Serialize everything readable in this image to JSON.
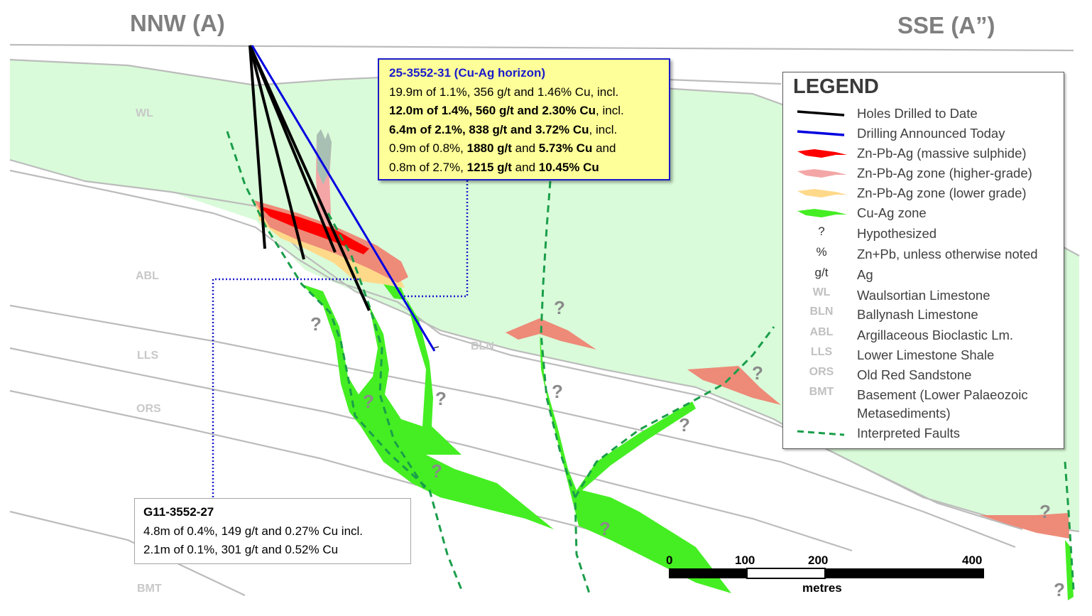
{
  "section": {
    "left_direction": "NNW (A)",
    "right_direction": "SSE (A”)",
    "units": [
      {
        "id": "wl",
        "label": "WL"
      },
      {
        "id": "abl",
        "label": "ABL"
      },
      {
        "id": "lls",
        "label": "LLS"
      },
      {
        "id": "ors",
        "label": "ORS"
      },
      {
        "id": "bmt",
        "label": "BMT"
      },
      {
        "id": "bln",
        "label": "BLN"
      }
    ],
    "question_mark": "?"
  },
  "callout_new_hole": {
    "title": "25-3552-31 (Cu-Ag horizon)",
    "lines": [
      [
        {
          "t": "19.9m of 1.1%, 356 g/t and 1.46% Cu, incl.",
          "b": false
        }
      ],
      [
        {
          "t": "12.0m of 1.4%, 560 g/t and 2.30% Cu",
          "b": true
        },
        {
          "t": ", incl.",
          "b": false
        }
      ],
      [
        {
          "t": "6.4m of 2.1%, 838 g/t and 3.72% Cu",
          "b": true
        },
        {
          "t": ", incl.",
          "b": false
        }
      ],
      [
        {
          "t": "0.9m of 0.8%, ",
          "b": false
        },
        {
          "t": "1880 g/t",
          "b": true
        },
        {
          "t": " and ",
          "b": false
        },
        {
          "t": "5.73% Cu",
          "b": true
        },
        {
          "t": " and",
          "b": false
        }
      ],
      [
        {
          "t": "0.8m of 2.7%, ",
          "b": false
        },
        {
          "t": "1215 g/t",
          "b": true
        },
        {
          "t": " and ",
          "b": false
        },
        {
          "t": "10.45% Cu",
          "b": true
        }
      ]
    ]
  },
  "callout_old_hole": {
    "title": "G11-3552-27",
    "lines": [
      [
        {
          "t": "4.8m of 0.4%, 149 g/t and 0.27% Cu incl.",
          "b": false
        }
      ],
      [
        {
          "t": "2.1m of 0.1%, 301 g/t and 0.52% Cu",
          "b": false
        }
      ]
    ]
  },
  "legend": {
    "title": "LEGEND",
    "items": [
      {
        "symbol": "line-black",
        "text": "Holes Drilled to Date",
        "color": "#000000"
      },
      {
        "symbol": "line-blue",
        "text": "Drilling Announced Today",
        "color": "#0000e0"
      },
      {
        "symbol": "swatch",
        "text": "Zn-Pb-Ag (massive sulphide)",
        "color": "#ff0000"
      },
      {
        "symbol": "swatch",
        "text": "Zn-Pb-Ag zone (higher-grade)",
        "color": "#f4a6a6"
      },
      {
        "symbol": "swatch",
        "text": "Zn-Pb-Ag zone (lower grade)",
        "color": "#ffd98a"
      },
      {
        "symbol": "swatch",
        "text": "Cu-Ag zone",
        "color": "#44ee22"
      },
      {
        "symbol": "text",
        "glyph": "?",
        "text": "Hypothesized"
      },
      {
        "symbol": "text",
        "glyph": "%",
        "text": "Zn+Pb, unless otherwise noted"
      },
      {
        "symbol": "text",
        "glyph": "g/t",
        "text": "Ag"
      },
      {
        "symbol": "abbr",
        "glyph": "WL",
        "text": "Waulsortian Limestone"
      },
      {
        "symbol": "abbr",
        "glyph": "BLN",
        "text": "Ballynash Limestone"
      },
      {
        "symbol": "abbr",
        "glyph": "ABL",
        "text": "Argillaceous Bioclastic Lm."
      },
      {
        "symbol": "abbr",
        "glyph": "LLS",
        "text": "Lower Limestone Shale"
      },
      {
        "symbol": "abbr",
        "glyph": "ORS",
        "text": "Old Red Sandstone"
      },
      {
        "symbol": "abbr",
        "glyph": "BMT",
        "text": "Basement (Lower Palaeozoic",
        "text2": "Metasediments)"
      },
      {
        "symbol": "dashed-green",
        "text": "Interpreted Faults",
        "color": "#1a9e4a"
      }
    ]
  },
  "scale": {
    "ticks": [
      "0",
      "100",
      "200",
      "400"
    ],
    "unit": "metres"
  }
}
